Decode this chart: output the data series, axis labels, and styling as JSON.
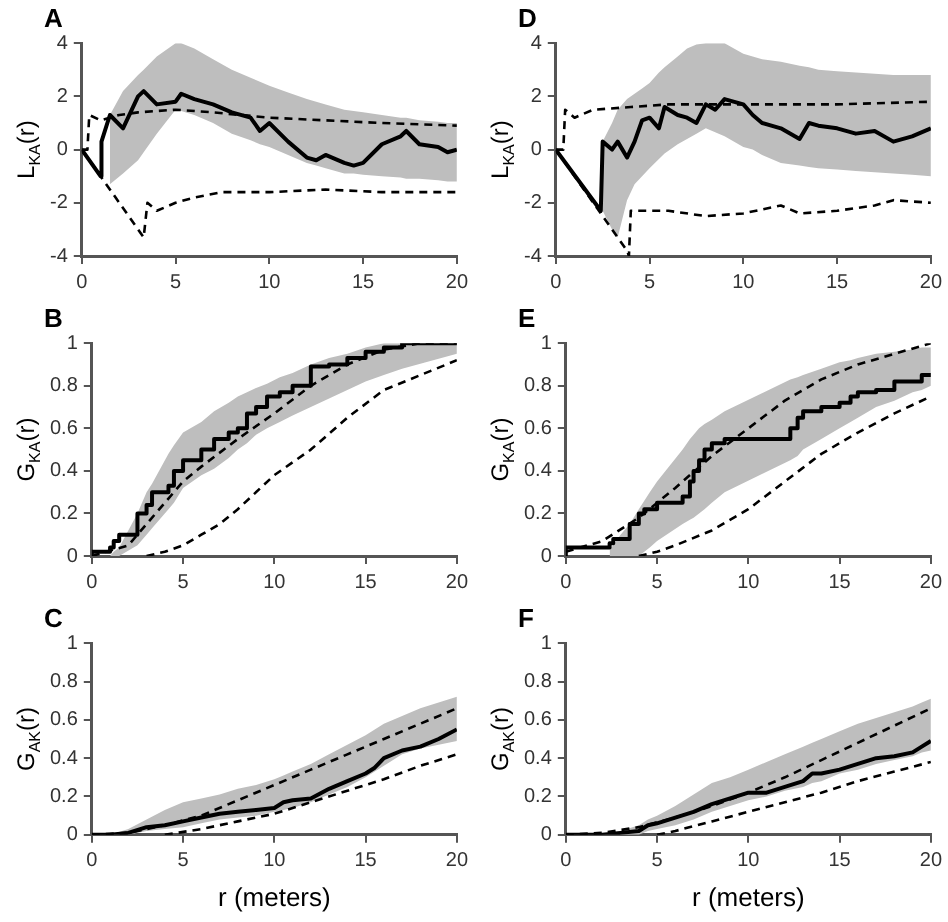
{
  "chart_data": [
    {
      "type": "line",
      "title": "A",
      "ylabel": "L$_{KA}$(r)",
      "xlim": [
        0,
        20
      ],
      "xticks": [
        0,
        5,
        10,
        15,
        20
      ],
      "ylim": [
        -4,
        4
      ],
      "yticks": [
        -4,
        -2,
        0,
        2,
        4
      ],
      "grid": false,
      "legend": false,
      "marker": "none",
      "series": [
        {
          "type": "line",
          "color": "#000000",
          "line_style": "solid",
          "x": [
            0,
            1,
            1.05,
            1.5,
            2.2,
            3,
            3.3,
            4,
            5,
            5.3,
            6,
            7,
            8,
            9,
            9.5,
            10,
            11,
            12,
            12.5,
            13,
            14,
            14.5,
            15,
            16,
            17,
            17.3,
            18,
            19,
            19.5,
            20
          ],
          "values": [
            0,
            -1,
            0.3,
            1.3,
            0.8,
            2.0,
            2.2,
            1.7,
            1.8,
            2.1,
            1.9,
            1.7,
            1.4,
            1.2,
            0.7,
            1.0,
            0.3,
            -0.3,
            -0.4,
            -0.2,
            -0.5,
            -0.6,
            -0.5,
            0.2,
            0.5,
            0.7,
            0.2,
            0.1,
            -0.1,
            0.0
          ],
          "upper": [
            null,
            null,
            null,
            1.3,
            2.2,
            2.8,
            3.0,
            3.5,
            4.0,
            4.0,
            3.8,
            3.4,
            3.0,
            2.7,
            2.55,
            2.4,
            2.15,
            1.9,
            1.8,
            1.7,
            1.5,
            1.45,
            1.4,
            1.3,
            1.2,
            1.2,
            1.1,
            1.05,
            1.0,
            1.0
          ],
          "lower": [
            null,
            null,
            null,
            -1.3,
            -0.9,
            -0.4,
            -0.1,
            0.6,
            1.5,
            1.45,
            1.3,
            1.0,
            0.6,
            0.35,
            0.2,
            0.1,
            -0.2,
            -0.5,
            -0.6,
            -0.7,
            -0.9,
            -0.9,
            -0.95,
            -1.0,
            -1.05,
            -1.1,
            -1.1,
            -1.15,
            -1.2,
            -1.2
          ]
        },
        {
          "type": "line",
          "color": "#000000",
          "line_style": "dashed",
          "x": [
            0,
            0.3,
            0.4,
            1,
            2,
            3,
            5,
            7,
            10,
            13,
            16,
            20
          ],
          "values": [
            0,
            0,
            1.3,
            1.1,
            1.3,
            1.4,
            1.5,
            1.4,
            1.2,
            1.1,
            1.0,
            0.9
          ]
        },
        {
          "type": "line",
          "color": "#000000",
          "line_style": "dashed",
          "x": [
            0,
            2,
            3.3,
            3.5,
            4,
            5,
            6,
            7.5,
            10,
            13,
            16,
            20
          ],
          "values": [
            0,
            -2,
            -3.3,
            -2.0,
            -2.3,
            -2.0,
            -1.8,
            -1.6,
            -1.6,
            -1.5,
            -1.6,
            -1.6
          ]
        }
      ]
    },
    {
      "type": "line",
      "title": "D",
      "ylabel": "L$_{KA}$(r)",
      "xlim": [
        0,
        20
      ],
      "xticks": [
        0,
        5,
        10,
        15,
        20
      ],
      "ylim": [
        -4,
        4
      ],
      "yticks": [
        -4,
        -2,
        0,
        2,
        4
      ],
      "grid": false,
      "legend": false,
      "marker": "none",
      "series": [
        {
          "type": "line",
          "color": "#000000",
          "line_style": "solid",
          "x": [
            0,
            2.4,
            2.5,
            3,
            3.3,
            3.8,
            4.2,
            4.6,
            5,
            5.5,
            5.8,
            6.5,
            7,
            7.5,
            8,
            8.5,
            9,
            10,
            10.5,
            11,
            12,
            13,
            13.5,
            14,
            15,
            16,
            17,
            18,
            19,
            20
          ],
          "values": [
            0,
            -2.3,
            0.3,
            0.0,
            0.3,
            -0.3,
            0.3,
            1.1,
            1.2,
            0.8,
            1.6,
            1.3,
            1.2,
            1.0,
            1.7,
            1.5,
            1.9,
            1.7,
            1.3,
            1.0,
            0.8,
            0.4,
            1.0,
            0.9,
            0.8,
            0.6,
            0.7,
            0.3,
            0.5,
            0.8
          ],
          "upper": [
            null,
            null,
            0.3,
            1.0,
            1.5,
            1.9,
            2.1,
            2.3,
            2.5,
            2.9,
            3.1,
            3.5,
            3.8,
            3.95,
            4.0,
            4.0,
            4.0,
            3.6,
            3.5,
            3.4,
            3.3,
            3.15,
            3.1,
            3.0,
            2.95,
            2.9,
            2.85,
            2.8,
            2.8,
            2.8
          ],
          "lower": [
            null,
            null,
            -2.3,
            -3.0,
            -3.3,
            -1.9,
            -1.3,
            -1.0,
            -0.7,
            -0.35,
            -0.15,
            0.2,
            0.4,
            0.6,
            0.8,
            0.65,
            0.5,
            0.1,
            0,
            -0.2,
            -0.5,
            -0.6,
            -0.65,
            -0.7,
            -0.75,
            -0.8,
            -0.85,
            -0.9,
            -0.95,
            -1.0
          ]
        },
        {
          "type": "line",
          "color": "#000000",
          "line_style": "dashed",
          "x": [
            0,
            0.4,
            0.5,
            1,
            2,
            4,
            6,
            10,
            15,
            20
          ],
          "values": [
            0,
            0,
            1.5,
            1.2,
            1.5,
            1.6,
            1.7,
            1.7,
            1.7,
            1.8
          ]
        },
        {
          "type": "line",
          "color": "#000000",
          "line_style": "dashed",
          "x": [
            0,
            3.8,
            3.9,
            4,
            6,
            8,
            10,
            12,
            13,
            15,
            17,
            18,
            20
          ],
          "values": [
            0,
            -3.8,
            -4,
            -2.3,
            -2.3,
            -2.5,
            -2.4,
            -2.1,
            -2.4,
            -2.3,
            -2.1,
            -1.9,
            -2.0
          ]
        }
      ]
    },
    {
      "type": "line",
      "title": "B",
      "ylabel": "G$_{KA}$(r)",
      "xlim": [
        0,
        20
      ],
      "xticks": [
        0,
        5,
        10,
        15,
        20
      ],
      "ylim": [
        0,
        1
      ],
      "yticks": [
        0,
        0.2,
        0.4,
        0.6,
        0.8,
        1
      ],
      "grid": false,
      "legend": false,
      "marker": "none",
      "series": [
        {
          "type": "step",
          "color": "#000000",
          "line_style": "solid",
          "x": [
            0,
            1,
            1.2,
            1.5,
            2.5,
            3,
            3.3,
            4.2,
            4.5,
            5,
            6,
            6.7,
            7.5,
            8,
            8.5,
            9,
            9.6,
            10.3,
            11,
            12,
            13,
            14,
            15,
            16,
            17,
            18.3,
            20
          ],
          "values": [
            0,
            0.02,
            0.04,
            0.07,
            0.1,
            0.2,
            0.24,
            0.3,
            0.33,
            0.4,
            0.45,
            0.5,
            0.55,
            0.58,
            0.6,
            0.67,
            0.7,
            0.75,
            0.77,
            0.8,
            0.89,
            0.9,
            0.93,
            0.96,
            0.98,
            1.0,
            1.0
          ],
          "upper": [
            null,
            0.0,
            0.02,
            0.04,
            0.2,
            0.3,
            0.34,
            0.48,
            0.52,
            0.58,
            0.63,
            0.68,
            0.72,
            0.75,
            0.77,
            0.79,
            0.81,
            0.84,
            0.86,
            0.9,
            0.93,
            0.95,
            0.98,
            1.0,
            1.0,
            1.0,
            1.0
          ],
          "lower": [
            null,
            0,
            0,
            0,
            0.05,
            0.1,
            0.13,
            0.22,
            0.25,
            0.32,
            0.38,
            0.41,
            0.46,
            0.5,
            0.53,
            0.57,
            0.6,
            0.63,
            0.66,
            0.7,
            0.74,
            0.78,
            0.82,
            0.85,
            0.88,
            0.91,
            0.95
          ]
        },
        {
          "type": "line",
          "color": "#000000",
          "line_style": "dashed",
          "x": [
            0,
            2,
            3,
            4,
            5,
            6,
            8,
            10,
            12,
            14,
            16,
            18,
            20
          ],
          "values": [
            0,
            0.05,
            0.15,
            0.25,
            0.35,
            0.42,
            0.55,
            0.67,
            0.8,
            0.9,
            0.97,
            1.0,
            1.0
          ]
        },
        {
          "type": "line",
          "color": "#000000",
          "line_style": "dashed",
          "x": [
            3,
            4,
            5,
            6,
            7,
            8,
            10,
            12,
            14,
            16,
            18,
            20
          ],
          "values": [
            0,
            0.02,
            0.05,
            0.1,
            0.15,
            0.22,
            0.38,
            0.5,
            0.65,
            0.78,
            0.85,
            0.92
          ]
        }
      ]
    },
    {
      "type": "line",
      "title": "E",
      "ylabel": "G$_{KA}$(r)",
      "xlim": [
        0,
        20
      ],
      "xticks": [
        0,
        5,
        10,
        15,
        20
      ],
      "ylim": [
        0,
        1
      ],
      "yticks": [
        0,
        0.2,
        0.4,
        0.6,
        0.8,
        1
      ],
      "grid": false,
      "legend": false,
      "marker": "none",
      "series": [
        {
          "type": "step",
          "color": "#000000",
          "line_style": "solid",
          "x": [
            0,
            2.4,
            2.6,
            3,
            3.5,
            4,
            4.3,
            4.6,
            5,
            6.4,
            6.8,
            7,
            7.3,
            7.6,
            8,
            8.7,
            12.3,
            12.7,
            13,
            14,
            15,
            15.6,
            16,
            17,
            18,
            19,
            19.5,
            20
          ],
          "values": [
            0,
            0.04,
            0.06,
            0.08,
            0.08,
            0.15,
            0.2,
            0.22,
            0.22,
            0.25,
            0.28,
            0.35,
            0.4,
            0.45,
            0.5,
            0.53,
            0.55,
            0.6,
            0.65,
            0.68,
            0.7,
            0.72,
            0.75,
            0.77,
            0.78,
            0.82,
            0.82,
            0.85
          ],
          "upper": [
            null,
            0.03,
            0.05,
            0.1,
            0.15,
            0.22,
            0.26,
            0.3,
            0.35,
            0.5,
            0.55,
            0.57,
            0.6,
            0.62,
            0.64,
            0.68,
            0.83,
            0.84,
            0.85,
            0.88,
            0.91,
            0.92,
            0.93,
            0.95,
            0.96,
            0.97,
            0.98,
            0.98
          ],
          "lower": [
            null,
            0,
            0,
            0,
            0,
            0,
            0.02,
            0.04,
            0.07,
            0.15,
            0.17,
            0.18,
            0.2,
            0.22,
            0.25,
            0.3,
            0.45,
            0.47,
            0.5,
            0.55,
            0.6,
            0.63,
            0.65,
            0.7,
            0.73,
            0.77,
            0.78,
            0.8
          ]
        },
        {
          "type": "line",
          "color": "#000000",
          "line_style": "dashed",
          "x": [
            0,
            2,
            4,
            6,
            8,
            10,
            12,
            14,
            16,
            18,
            20
          ],
          "values": [
            0.02,
            0.07,
            0.18,
            0.32,
            0.47,
            0.6,
            0.73,
            0.83,
            0.9,
            0.95,
            1.0
          ]
        },
        {
          "type": "line",
          "color": "#000000",
          "line_style": "dashed",
          "x": [
            4,
            5,
            6,
            8,
            10,
            12,
            14,
            16,
            18,
            20
          ],
          "values": [
            0,
            0.02,
            0.05,
            0.12,
            0.22,
            0.35,
            0.48,
            0.58,
            0.67,
            0.75
          ]
        }
      ]
    },
    {
      "type": "line",
      "title": "C",
      "xlabel": "r (meters)",
      "ylabel": "G$_{AK}$(r)",
      "xlim": [
        0,
        20
      ],
      "xticks": [
        0,
        5,
        10,
        15,
        20
      ],
      "ylim": [
        0,
        1
      ],
      "yticks": [
        0,
        0.2,
        0.4,
        0.6,
        0.8,
        1
      ],
      "grid": false,
      "legend": false,
      "marker": "none",
      "series": [
        {
          "type": "line",
          "color": "#000000",
          "line_style": "solid",
          "x": [
            0,
            1,
            2,
            3,
            4,
            5,
            6,
            7,
            8,
            9,
            10,
            10.5,
            11,
            12,
            13,
            14,
            15,
            15.5,
            16,
            17,
            18,
            19,
            20
          ],
          "values": [
            0,
            0,
            0.01,
            0.04,
            0.05,
            0.07,
            0.09,
            0.11,
            0.12,
            0.13,
            0.14,
            0.17,
            0.18,
            0.19,
            0.24,
            0.28,
            0.32,
            0.35,
            0.4,
            0.44,
            0.46,
            0.5,
            0.55
          ],
          "upper": [
            0,
            0,
            0.03,
            0.08,
            0.13,
            0.17,
            0.19,
            0.21,
            0.24,
            0.26,
            0.29,
            0.31,
            0.33,
            0.37,
            0.42,
            0.47,
            0.52,
            0.55,
            0.58,
            0.62,
            0.66,
            0.69,
            0.72
          ],
          "lower": [
            0,
            0,
            0,
            0.02,
            0.03,
            0.04,
            0.06,
            0.08,
            0.09,
            0.1,
            0.12,
            0.13,
            0.14,
            0.17,
            0.21,
            0.25,
            0.3,
            0.33,
            0.36,
            0.42,
            0.45,
            0.47,
            0.49
          ]
        },
        {
          "type": "line",
          "color": "#000000",
          "line_style": "dashed",
          "x": [
            0,
            2,
            4,
            6,
            8,
            10,
            12,
            14,
            16,
            18,
            20
          ],
          "values": [
            0,
            0.01,
            0.05,
            0.1,
            0.18,
            0.26,
            0.34,
            0.42,
            0.5,
            0.58,
            0.66
          ]
        },
        {
          "type": "line",
          "color": "#000000",
          "line_style": "dashed",
          "x": [
            4,
            6,
            8,
            10,
            12,
            14,
            16,
            18,
            20
          ],
          "values": [
            0,
            0.03,
            0.07,
            0.11,
            0.17,
            0.23,
            0.29,
            0.36,
            0.42
          ]
        }
      ]
    },
    {
      "type": "line",
      "title": "F",
      "xlabel": "r (meters)",
      "ylabel": "G$_{AK}$(r)",
      "xlim": [
        0,
        20
      ],
      "xticks": [
        0,
        5,
        10,
        15,
        20
      ],
      "ylim": [
        0,
        1
      ],
      "yticks": [
        0,
        0.2,
        0.4,
        0.6,
        0.8,
        1
      ],
      "grid": false,
      "legend": false,
      "marker": "none",
      "series": [
        {
          "type": "line",
          "color": "#000000",
          "line_style": "solid",
          "x": [
            0,
            2,
            3,
            4,
            4.5,
            5,
            6,
            7,
            8,
            9,
            10,
            11,
            12,
            13,
            13.5,
            14,
            15,
            16,
            17,
            18,
            19,
            19.5,
            20
          ],
          "values": [
            0,
            0,
            0.01,
            0.02,
            0.05,
            0.06,
            0.09,
            0.12,
            0.16,
            0.19,
            0.22,
            0.22,
            0.25,
            0.28,
            0.32,
            0.32,
            0.34,
            0.37,
            0.4,
            0.41,
            0.43,
            0.46,
            0.49
          ],
          "upper": [
            0,
            0,
            0.02,
            0.05,
            0.08,
            0.1,
            0.15,
            0.21,
            0.27,
            0.3,
            0.34,
            0.38,
            0.42,
            0.46,
            0.48,
            0.5,
            0.54,
            0.58,
            0.61,
            0.64,
            0.67,
            0.69,
            0.71
          ],
          "lower": [
            0,
            0,
            0,
            0,
            0.02,
            0.03,
            0.05,
            0.08,
            0.12,
            0.15,
            0.18,
            0.2,
            0.23,
            0.25,
            0.27,
            0.28,
            0.32,
            0.34,
            0.37,
            0.39,
            0.41,
            0.43,
            0.44
          ]
        },
        {
          "type": "line",
          "color": "#000000",
          "line_style": "dashed",
          "x": [
            0,
            2,
            4,
            6,
            8,
            10,
            12,
            14,
            16,
            18,
            20
          ],
          "values": [
            0,
            0.01,
            0.04,
            0.09,
            0.15,
            0.22,
            0.3,
            0.39,
            0.48,
            0.57,
            0.66
          ]
        },
        {
          "type": "line",
          "color": "#000000",
          "line_style": "dashed",
          "x": [
            5,
            6,
            8,
            10,
            12,
            14,
            16,
            18,
            20
          ],
          "values": [
            0,
            0.02,
            0.07,
            0.12,
            0.17,
            0.22,
            0.28,
            0.33,
            0.38
          ]
        }
      ]
    }
  ]
}
